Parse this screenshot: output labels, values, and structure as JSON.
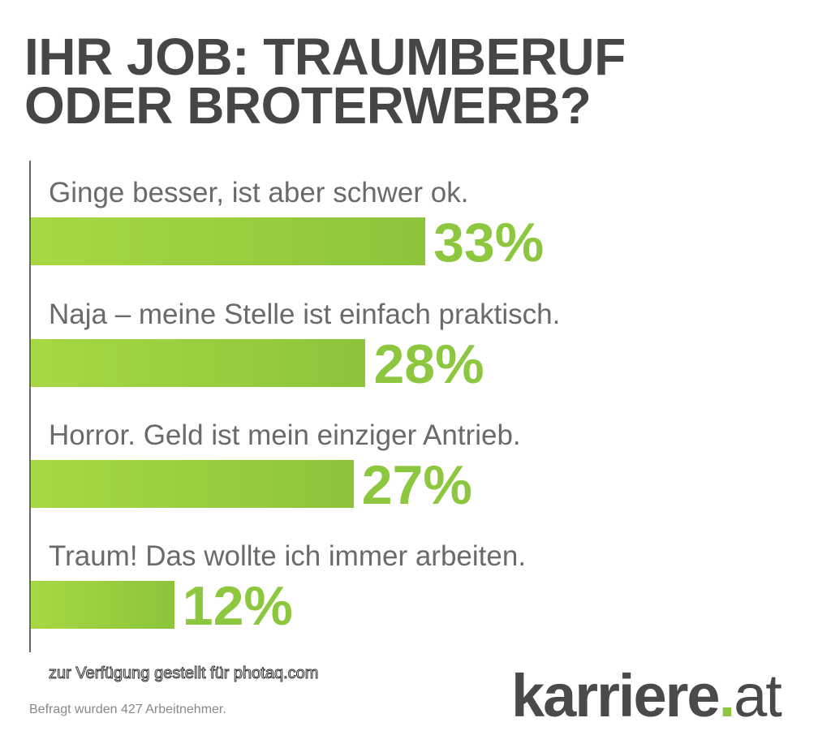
{
  "chart_data": {
    "type": "bar",
    "orientation": "horizontal",
    "title": "IHR JOB: TRAUMBERUF ODER BROTERWERB?",
    "title_lines": [
      "IHR JOB: TRAUMBERUF",
      "ODER BROTERWERB?"
    ],
    "categories": [
      "Ginge besser, ist aber schwer ok.",
      "Naja – meine Stelle ist einfach praktisch.",
      "Horror. Geld ist mein einziger Antrieb.",
      "Traum! Das wollte ich immer arbeiten."
    ],
    "values": [
      33,
      28,
      27,
      12
    ],
    "value_labels": [
      "33%",
      "28%",
      "27%",
      "12%"
    ],
    "unit": "%",
    "bar_color": "#8dc63f",
    "footnote": "Befragt wurden 427 Arbeitnehmer."
  },
  "watermark": "zur Verfügung gestellt für photaq.com",
  "logo": {
    "main": "karriere",
    "dot": ".",
    "suffix": "at"
  }
}
